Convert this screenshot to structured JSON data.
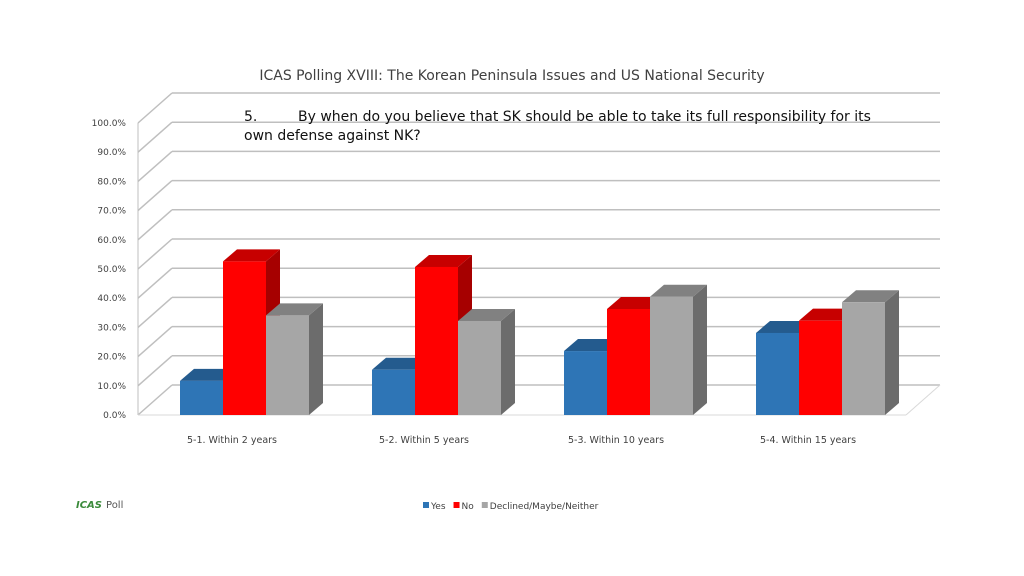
{
  "brand": {
    "mark": "ICAS",
    "text": "Poll"
  },
  "question": {
    "number": "5.",
    "text": "By when do you believe that SK should be able to take its full responsibility for its own defense against NK?"
  },
  "chart_data": {
    "type": "bar",
    "title": "ICAS Polling XVIII: The Korean Peninsula Issues and US National Security",
    "categories": [
      "5-1. Within 2 years",
      "5-2. Within 5 years",
      "5-3. Within 10 years",
      "5-4. Within 15 years"
    ],
    "series": [
      {
        "name": "Yes",
        "values": [
          11.7,
          15.5,
          21.9,
          28.1
        ],
        "color": "#2e75b6"
      },
      {
        "name": "No",
        "values": [
          52.6,
          50.7,
          36.3,
          32.3
        ],
        "color": "#ff0000"
      },
      {
        "name": "Declined/Maybe/Neither",
        "values": [
          34.1,
          32.2,
          40.5,
          38.6
        ],
        "color": "#a6a6a6"
      }
    ],
    "yticks": [
      "0.0%",
      "10.0%",
      "20.0%",
      "30.0%",
      "40.0%",
      "50.0%",
      "60.0%",
      "70.0%",
      "80.0%",
      "90.0%",
      "100.0%"
    ],
    "ylim": [
      0,
      100
    ],
    "grid": true,
    "legend": "bottom",
    "style": "3d-column"
  }
}
